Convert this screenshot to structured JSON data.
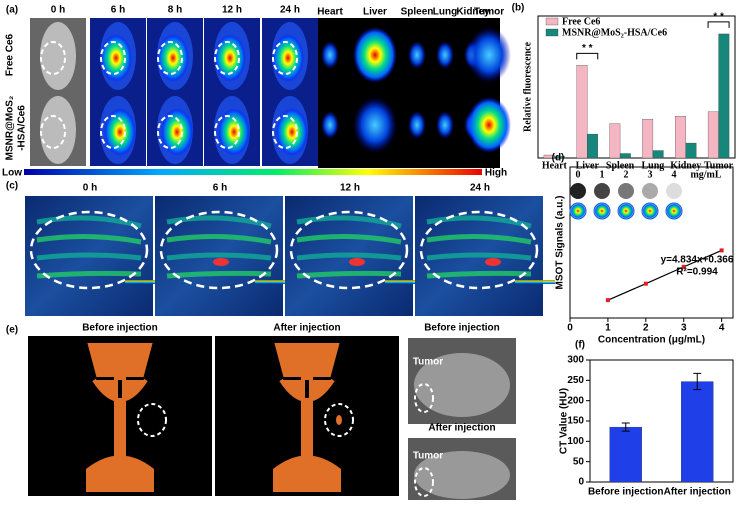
{
  "panel_a": {
    "label": "(a)",
    "times": [
      "0 h",
      "6 h",
      "8 h",
      "12 h",
      "24 h"
    ],
    "organs": [
      "Heart",
      "Liver",
      "Spleen",
      "Lung",
      "Kidney",
      "Tumor"
    ],
    "row_labels": [
      [
        "Free Ce6"
      ],
      [
        "MSNR@MoS₂",
        "-HSA/Ce6"
      ]
    ],
    "scale_low": "Low",
    "scale_high": "High"
  },
  "panel_c": {
    "label": "(c)",
    "times": [
      "0 h",
      "6 h",
      "12 h",
      "24 h"
    ]
  },
  "panel_e": {
    "label": "(e)",
    "titles": [
      "Before injection",
      "After injection",
      "Before injection",
      "After injection"
    ],
    "tumor_labels": [
      "Tumor",
      "Tumor"
    ]
  },
  "chart_data": [
    {
      "type": "bar",
      "panel": "(b)",
      "ylabel": "Relative fluorescence",
      "categories": [
        "Heart",
        "Liver",
        "Spleen",
        "Lung",
        "Kidney",
        "Tumor"
      ],
      "series": [
        {
          "name": "Free Ce6",
          "color": "#f4b6c2",
          "values": [
            0.2,
            6.2,
            2.3,
            2.6,
            2.8,
            3.1
          ]
        },
        {
          "name": "MSNR@MoS₂-HSA/Ce6",
          "color": "#17877c",
          "values": [
            0.1,
            1.6,
            0.3,
            0.5,
            1.0,
            8.3
          ]
        }
      ],
      "ylim": [
        0,
        9.5
      ],
      "annotations": [
        "* *",
        "* *"
      ]
    },
    {
      "type": "scatter",
      "panel": "(d)",
      "xlabel": "Concentration (μg/mL)",
      "ylabel": "MSOT Signals (a.u.)",
      "x": [
        1,
        2,
        3,
        4
      ],
      "values": [
        5.2,
        10.0,
        14.9,
        19.7
      ],
      "color": "#e02020",
      "xlim": [
        0,
        4.3
      ],
      "xticks": [
        0,
        1,
        2,
        3,
        4
      ],
      "ylim": [
        0,
        44
      ],
      "annotations": [
        "y=4.834x+0.366",
        "R²=0.994"
      ],
      "inset_labels": [
        "0",
        "1",
        "2",
        "3",
        "4",
        "mg/mL"
      ]
    },
    {
      "type": "bar",
      "panel": "(f)",
      "ylabel": "CT Value (HU)",
      "categories": [
        "Before injection",
        "After injection"
      ],
      "values": [
        135,
        247
      ],
      "errors": [
        10,
        20
      ],
      "color": "#1f3fe8",
      "ylim": [
        0,
        300
      ],
      "yticks": [
        0,
        50,
        100,
        150,
        200,
        250,
        300
      ]
    }
  ]
}
